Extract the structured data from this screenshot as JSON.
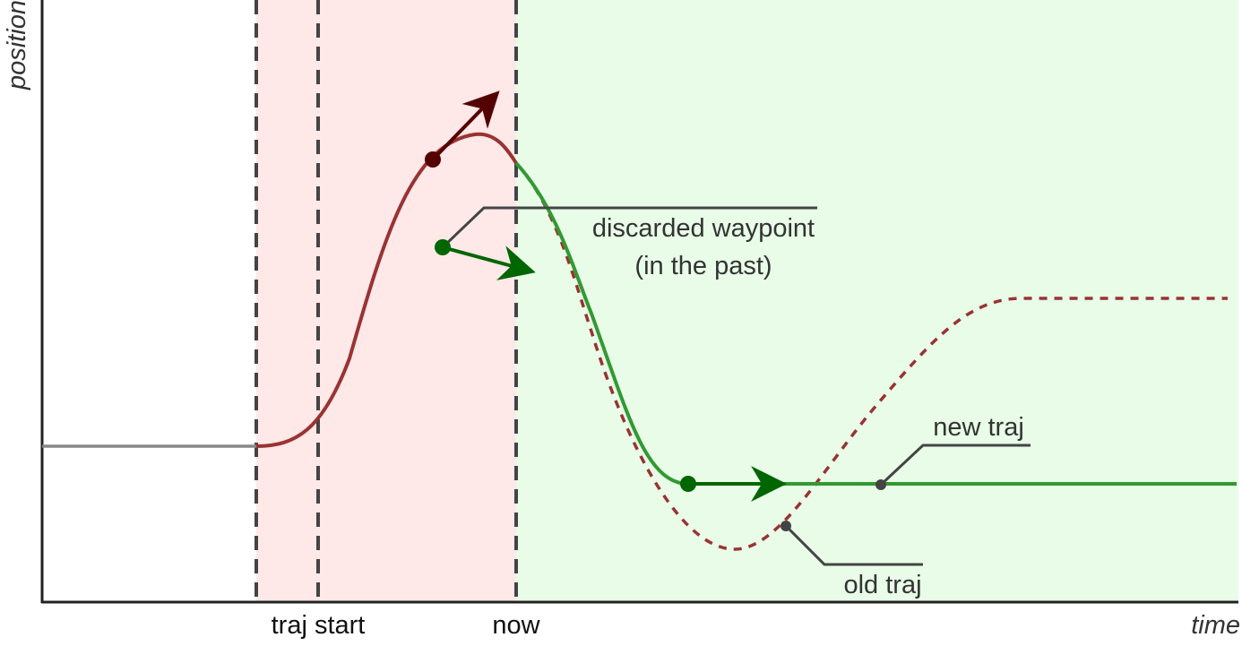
{
  "axes": {
    "y_label": "position",
    "x_label": "time"
  },
  "markers": {
    "traj_start": "traj start",
    "now": "now"
  },
  "annotations": {
    "discarded_line1": "discarded waypoint",
    "discarded_line2": "(in the past)",
    "new_traj": "new traj",
    "old_traj": "old traj"
  },
  "colors": {
    "past_region": "#ffe8e8",
    "future_region": "#e8fce8",
    "old_traj": "#993333",
    "old_waypoint": "#550000",
    "new_traj": "#339933",
    "new_waypoint": "#006600",
    "initial": "#888888",
    "callout": "#444444"
  }
}
